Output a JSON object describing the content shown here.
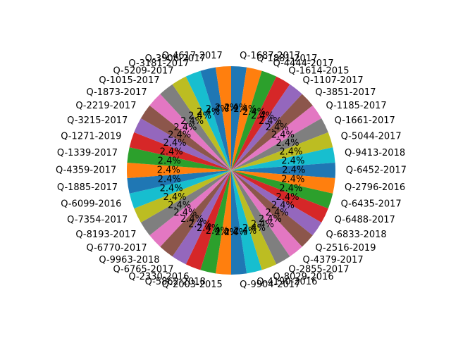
{
  "chart_data": {
    "type": "pie",
    "title": "",
    "start_angle_deg": 90,
    "direction": "clockwise",
    "legend": "none",
    "palette": [
      "#1f77b4",
      "#ff7f0e",
      "#2ca02c",
      "#d62728",
      "#9467bd",
      "#8c564b",
      "#e377c2",
      "#7f7f7f",
      "#bcbd22",
      "#17becf"
    ],
    "slices": [
      {
        "label": "Q-1687-2017",
        "value": 1,
        "pct_label": "2.4%"
      },
      {
        "label": "Q-1881-2017",
        "value": 1,
        "pct_label": "2.4%"
      },
      {
        "label": "Q-4444-2017",
        "value": 1,
        "pct_label": "2.4%"
      },
      {
        "label": "Q-1614-2015",
        "value": 1,
        "pct_label": "2.4%"
      },
      {
        "label": "Q-1107-2017",
        "value": 1,
        "pct_label": "2.4%"
      },
      {
        "label": "Q-3851-2017",
        "value": 1,
        "pct_label": "2.4%"
      },
      {
        "label": "Q-1185-2017",
        "value": 1,
        "pct_label": "2.4%"
      },
      {
        "label": "Q-1661-2017",
        "value": 1,
        "pct_label": "2.4%"
      },
      {
        "label": "Q-5044-2017",
        "value": 1,
        "pct_label": "2.4%"
      },
      {
        "label": "Q-9413-2018",
        "value": 1,
        "pct_label": "2.4%"
      },
      {
        "label": "Q-6452-2017",
        "value": 1,
        "pct_label": "2.4%"
      },
      {
        "label": "Q-2796-2016",
        "value": 1,
        "pct_label": "2.4%"
      },
      {
        "label": "Q-6435-2017",
        "value": 1,
        "pct_label": "2.4%"
      },
      {
        "label": "Q-6488-2017",
        "value": 1,
        "pct_label": "2.4%"
      },
      {
        "label": "Q-6833-2018",
        "value": 1,
        "pct_label": "2.4%"
      },
      {
        "label": "Q-2516-2019",
        "value": 1,
        "pct_label": "2.4%"
      },
      {
        "label": "Q-4379-2017",
        "value": 1,
        "pct_label": "2.4%"
      },
      {
        "label": "Q-2855-2017",
        "value": 1,
        "pct_label": "2.4%"
      },
      {
        "label": "Q-8029-2016",
        "value": 1,
        "pct_label": "2.4%"
      },
      {
        "label": "Q-4190-2016",
        "value": 1,
        "pct_label": "2.4%"
      },
      {
        "label": "Q-9904-2017",
        "value": 1,
        "pct_label": "2.4%"
      },
      {
        "label": "Q-2003-2015",
        "value": 1,
        "pct_label": "2.4%"
      },
      {
        "label": "Q-5862-2018",
        "value": 1,
        "pct_label": "2.4%"
      },
      {
        "label": "Q-2330-2016",
        "value": 1,
        "pct_label": "2.4%"
      },
      {
        "label": "Q-6765-2017",
        "value": 1,
        "pct_label": "2.4%"
      },
      {
        "label": "Q-9963-2018",
        "value": 1,
        "pct_label": "2.4%"
      },
      {
        "label": "Q-6770-2017",
        "value": 1,
        "pct_label": "2.4%"
      },
      {
        "label": "Q-8193-2017",
        "value": 1,
        "pct_label": "2.4%"
      },
      {
        "label": "Q-7354-2017",
        "value": 1,
        "pct_label": "2.4%"
      },
      {
        "label": "Q-6099-2016",
        "value": 1,
        "pct_label": "2.4%"
      },
      {
        "label": "Q-1885-2017",
        "value": 1,
        "pct_label": "2.4%"
      },
      {
        "label": "Q-4359-2017",
        "value": 1,
        "pct_label": "2.4%"
      },
      {
        "label": "Q-1339-2017",
        "value": 1,
        "pct_label": "2.4%"
      },
      {
        "label": "Q-1271-2019",
        "value": 1,
        "pct_label": "2.4%"
      },
      {
        "label": "Q-3215-2017",
        "value": 1,
        "pct_label": "2.4%"
      },
      {
        "label": "Q-2219-2017",
        "value": 1,
        "pct_label": "2.4%"
      },
      {
        "label": "Q-1873-2017",
        "value": 1,
        "pct_label": "2.4%"
      },
      {
        "label": "Q-1015-2017",
        "value": 1,
        "pct_label": "2.4%"
      },
      {
        "label": "Q-5209-2017",
        "value": 1,
        "pct_label": "2.4%"
      },
      {
        "label": "Q-3181-2017",
        "value": 1,
        "pct_label": "2.4%"
      },
      {
        "label": "Q-3906-2017",
        "value": 1,
        "pct_label": "2.4%"
      },
      {
        "label": "Q-4617-2017",
        "value": 1,
        "pct_label": "2.4%"
      }
    ]
  }
}
